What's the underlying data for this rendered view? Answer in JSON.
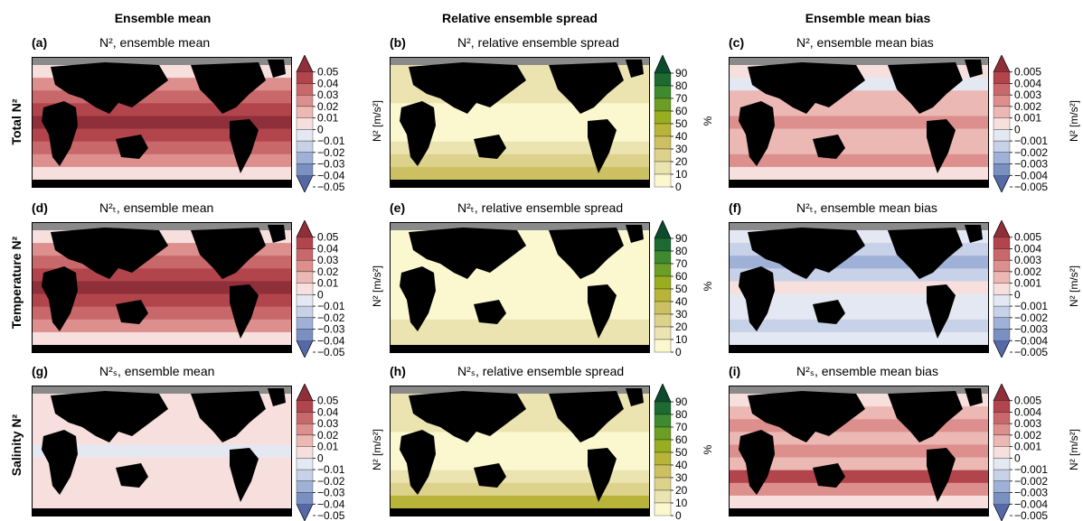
{
  "column_titles": [
    "Ensemble mean",
    "Relative ensemble spread",
    "Ensemble mean bias"
  ],
  "row_titles": [
    "Total N²",
    "Temperature N²",
    "Salinity N²"
  ],
  "panels": [
    {
      "label": "(a)",
      "title": "N², ensemble mean"
    },
    {
      "label": "(b)",
      "title": "N², relative ensemble spread"
    },
    {
      "label": "(c)",
      "title": "N², ensemble mean bias"
    },
    {
      "label": "(d)",
      "title": "N²ₜ, ensemble mean"
    },
    {
      "label": "(e)",
      "title": "N²ₜ, relative ensemble spread"
    },
    {
      "label": "(f)",
      "title": "N²ₜ, ensemble mean bias"
    },
    {
      "label": "(g)",
      "title": "N²ₛ, ensemble mean"
    },
    {
      "label": "(h)",
      "title": "N²ₛ, relative ensemble spread"
    },
    {
      "label": "(i)",
      "title": "N²ₛ, ensemble mean bias"
    }
  ],
  "colorbars": {
    "mean": {
      "ticks": [
        "0.05",
        "0.04",
        "0.03",
        "0.02",
        "0.01",
        "0",
        "−0.01",
        "−0.02",
        "−0.03",
        "−0.04",
        "−0.05"
      ],
      "unit": "N² [m/s²]",
      "colors": [
        "#8e2f3a",
        "#b2444c",
        "#c9686a",
        "#dc8f8d",
        "#ecb8b4",
        "#f6dfdc",
        "#e4e8f2",
        "#c7d1e7",
        "#9fb1d6",
        "#7a90c1",
        "#5469a6"
      ]
    },
    "spread": {
      "ticks": [
        "90",
        "80",
        "70",
        "60",
        "50",
        "40",
        "30",
        "20",
        "10",
        "0"
      ],
      "unit": "%",
      "colors": [
        "#0c4b2e",
        "#1d6b32",
        "#3f8a2f",
        "#6c9e26",
        "#98ad20",
        "#b8b43a",
        "#cdc063",
        "#ddd28c",
        "#ebe3b0",
        "#fbf7cf"
      ]
    },
    "bias": {
      "ticks": [
        "0.005",
        "0.004",
        "0.003",
        "0.002",
        "0.001",
        "0",
        "−0.001",
        "−0.002",
        "−0.003",
        "−0.004",
        "−0.005"
      ],
      "unit": "N² [m/s²]",
      "colors": [
        "#8e2f3a",
        "#b2444c",
        "#c9686a",
        "#dc8f8d",
        "#ecb8b4",
        "#f6dfdc",
        "#e4e8f2",
        "#c7d1e7",
        "#9fb1d6",
        "#7a90c1",
        "#5469a6"
      ]
    }
  },
  "chart_data": [
    {
      "type": "heatmap",
      "title": "N², ensemble mean",
      "colorbar_range": [
        -0.05,
        0.05
      ],
      "unit": "N² [m/s²]"
    },
    {
      "type": "heatmap",
      "title": "N², relative ensemble spread",
      "colorbar_range": [
        0,
        90
      ],
      "unit": "%"
    },
    {
      "type": "heatmap",
      "title": "N², ensemble mean bias",
      "colorbar_range": [
        -0.005,
        0.005
      ],
      "unit": "N² [m/s²]"
    },
    {
      "type": "heatmap",
      "title": "N²ₜ, ensemble mean",
      "colorbar_range": [
        -0.05,
        0.05
      ],
      "unit": "N² [m/s²]"
    },
    {
      "type": "heatmap",
      "title": "N²ₜ, relative ensemble spread",
      "colorbar_range": [
        0,
        90
      ],
      "unit": "%"
    },
    {
      "type": "heatmap",
      "title": "N²ₜ, ensemble mean bias",
      "colorbar_range": [
        -0.005,
        0.005
      ],
      "unit": "N² [m/s²]"
    },
    {
      "type": "heatmap",
      "title": "N²ₛ, ensemble mean",
      "colorbar_range": [
        -0.05,
        0.05
      ],
      "unit": "N² [m/s²]"
    },
    {
      "type": "heatmap",
      "title": "N²ₛ, relative ensemble spread",
      "colorbar_range": [
        0,
        90
      ],
      "unit": "%"
    },
    {
      "type": "heatmap",
      "title": "N²ₛ, ensemble mean bias",
      "colorbar_range": [
        -0.005,
        0.005
      ],
      "unit": "N² [m/s²]"
    }
  ]
}
